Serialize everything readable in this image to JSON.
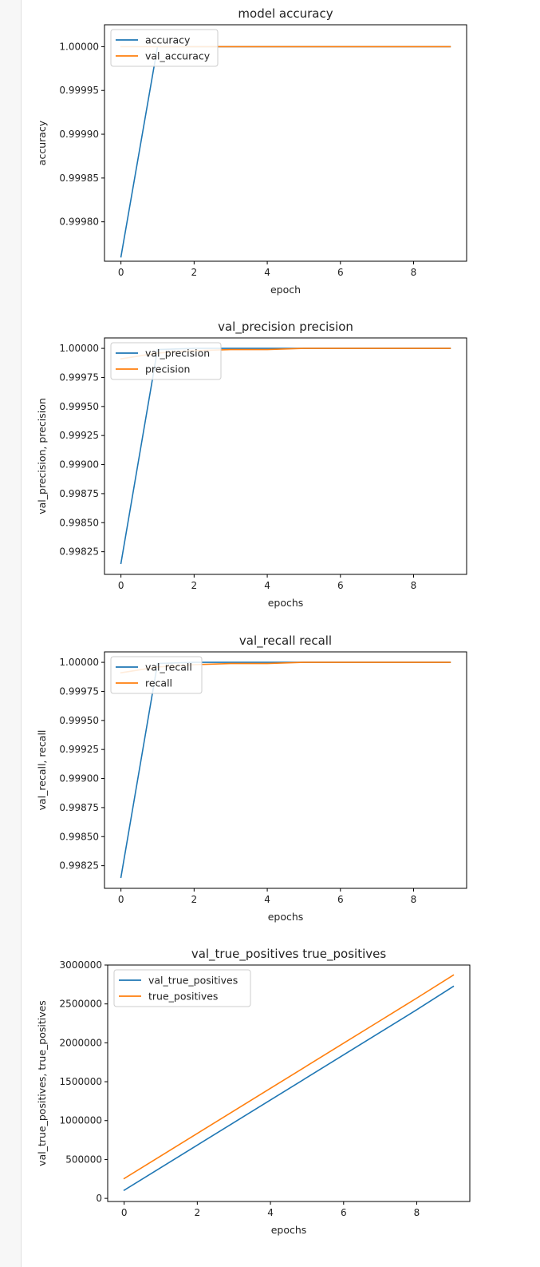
{
  "chart_data": [
    {
      "type": "line",
      "title": "model accuracy",
      "xlabel": "epoch",
      "ylabel": "accuracy",
      "x": [
        0,
        1,
        2,
        3,
        4,
        5,
        6,
        7,
        8,
        9
      ],
      "xlim": [
        -0.45,
        9.45
      ],
      "ylim": [
        0.999755,
        1.000025
      ],
      "xticks": [
        0,
        2,
        4,
        6,
        8
      ],
      "yticks": [
        0.9998,
        0.99985,
        0.9999,
        0.99995,
        1.0
      ],
      "ytick_labels": [
        "0.99980",
        "0.99985",
        "0.99990",
        "0.99995",
        "1.00000"
      ],
      "legend_position": "upper left",
      "series": [
        {
          "name": "accuracy",
          "color": "#1f77b4",
          "values": [
            0.99976,
            1.0,
            1.0,
            1.0,
            1.0,
            1.0,
            1.0,
            1.0,
            1.0,
            1.0
          ]
        },
        {
          "name": "val_accuracy",
          "color": "#ff7f0e",
          "values": [
            1.0,
            1.0,
            1.0,
            1.0,
            1.0,
            1.0,
            1.0,
            1.0,
            1.0,
            1.0
          ]
        }
      ]
    },
    {
      "type": "line",
      "title": "val_precision precision",
      "xlabel": "epochs",
      "ylabel": "val_precision, precision",
      "x": [
        0,
        1,
        2,
        3,
        4,
        5,
        6,
        7,
        8,
        9
      ],
      "xlim": [
        -0.45,
        9.45
      ],
      "ylim": [
        0.998055,
        1.00009
      ],
      "xticks": [
        0,
        2,
        4,
        6,
        8
      ],
      "yticks": [
        0.99825,
        0.9985,
        0.99875,
        0.999,
        0.99925,
        0.9995,
        0.99975,
        1.0
      ],
      "ytick_labels": [
        "0.99825",
        "0.99850",
        "0.99875",
        "0.99900",
        "0.99925",
        "0.99950",
        "0.99975",
        "1.00000"
      ],
      "legend_position": "upper left",
      "series": [
        {
          "name": "val_precision",
          "color": "#1f77b4",
          "values": [
            0.99815,
            0.99999,
            1.0,
            1.0,
            1.0,
            1.0,
            1.0,
            1.0,
            1.0,
            1.0
          ]
        },
        {
          "name": "precision",
          "color": "#ff7f0e",
          "values": [
            0.99991,
            0.99996,
            0.99998,
            0.99999,
            0.99999,
            1.0,
            1.0,
            1.0,
            1.0,
            1.0
          ]
        }
      ]
    },
    {
      "type": "line",
      "title": "val_recall recall",
      "xlabel": "epochs",
      "ylabel": "val_recall, recall",
      "x": [
        0,
        1,
        2,
        3,
        4,
        5,
        6,
        7,
        8,
        9
      ],
      "xlim": [
        -0.45,
        9.45
      ],
      "ylim": [
        0.998055,
        1.00009
      ],
      "xticks": [
        0,
        2,
        4,
        6,
        8
      ],
      "yticks": [
        0.99825,
        0.9985,
        0.99875,
        0.999,
        0.99925,
        0.9995,
        0.99975,
        1.0
      ],
      "ytick_labels": [
        "0.99825",
        "0.99850",
        "0.99875",
        "0.99900",
        "0.99925",
        "0.99950",
        "0.99975",
        "1.00000"
      ],
      "legend_position": "upper left",
      "series": [
        {
          "name": "val_recall",
          "color": "#1f77b4",
          "values": [
            0.99815,
            0.99999,
            1.0,
            1.0,
            1.0,
            1.0,
            1.0,
            1.0,
            1.0,
            1.0
          ]
        },
        {
          "name": "recall",
          "color": "#ff7f0e",
          "values": [
            0.99991,
            0.99996,
            0.99998,
            0.99999,
            0.99999,
            1.0,
            1.0,
            1.0,
            1.0,
            1.0
          ]
        }
      ]
    },
    {
      "type": "line",
      "title": "val_true_positives true_positives",
      "xlabel": "epochs",
      "ylabel": "val_true_positives, true_positives",
      "x": [
        0,
        1,
        2,
        3,
        4,
        5,
        6,
        7,
        8,
        9
      ],
      "xlim": [
        -0.45,
        9.45
      ],
      "ylim": [
        -40000,
        3000000
      ],
      "xticks": [
        0,
        2,
        4,
        6,
        8
      ],
      "yticks": [
        0,
        500000,
        1000000,
        1500000,
        2000000,
        2500000,
        3000000
      ],
      "ytick_labels": [
        "0",
        "500000",
        "1000000",
        "1500000",
        "2000000",
        "2500000",
        "3000000"
      ],
      "legend_position": "upper left",
      "series": [
        {
          "name": "val_true_positives",
          "color": "#1f77b4",
          "values": [
            105000,
            395000,
            685000,
            975000,
            1265000,
            1555000,
            1845000,
            2135000,
            2425000,
            2725000
          ]
        },
        {
          "name": "true_positives",
          "color": "#ff7f0e",
          "values": [
            255000,
            545000,
            835000,
            1125000,
            1415000,
            1705000,
            1995000,
            2285000,
            2575000,
            2870000
          ]
        }
      ]
    }
  ]
}
